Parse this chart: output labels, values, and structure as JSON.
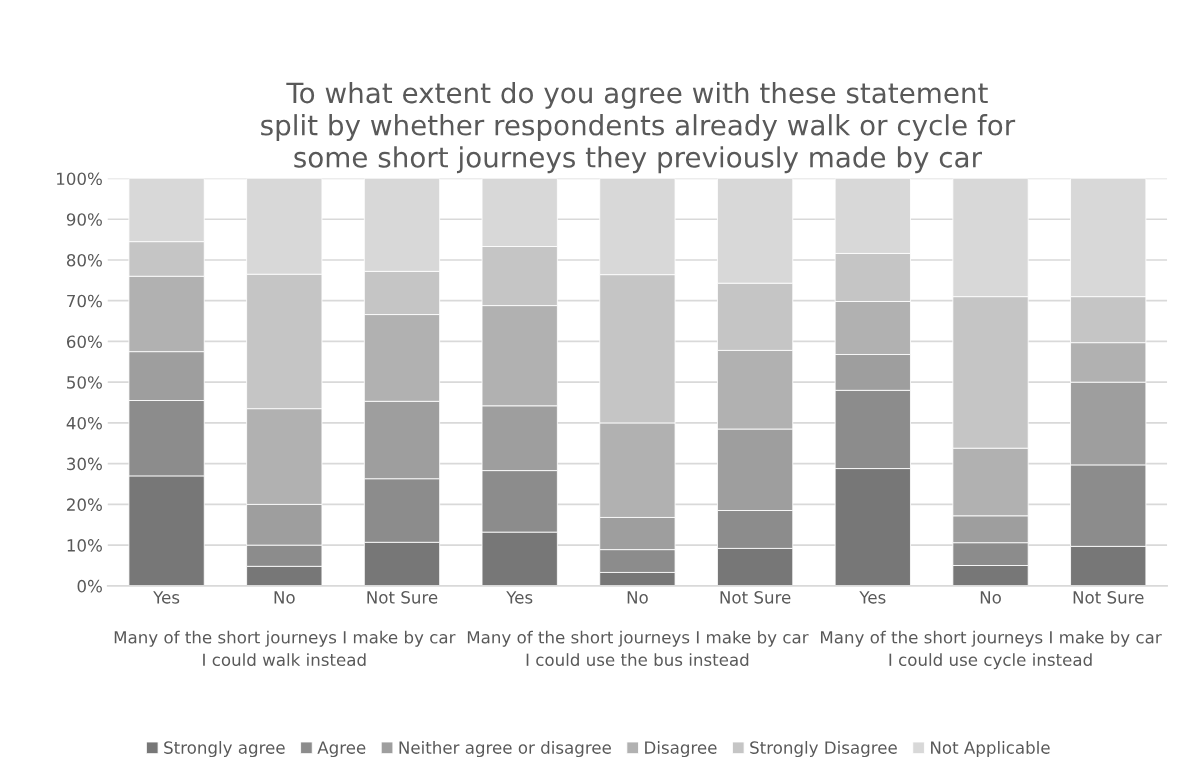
{
  "chart_data": {
    "type": "bar",
    "stacked": true,
    "title": "To what extent do you agree with these statement split by whether respondents already walk or cycle for some short journeys they previously made by car",
    "categories": [
      "Yes",
      "No",
      "Not Sure",
      "Yes",
      "No",
      "Not Sure",
      "Yes",
      "No",
      "Not Sure"
    ],
    "series": [
      {
        "name": "Strongly agree",
        "color": "#777777",
        "values": [
          27,
          4.8,
          10.7,
          13.2,
          3.3,
          9.2,
          28.8,
          5,
          9.7
        ]
      },
      {
        "name": "Agree",
        "color": "#8c8c8c",
        "values": [
          18.5,
          5.2,
          15.6,
          15.1,
          5.6,
          9.3,
          19.2,
          5.6,
          20
        ]
      },
      {
        "name": "Neither agree or disagree",
        "color": "#9e9e9e",
        "values": [
          12,
          10,
          19,
          15.9,
          7.9,
          20,
          8.8,
          6.6,
          20.3
        ]
      },
      {
        "name": "Disagree",
        "color": "#b1b1b1",
        "values": [
          18.5,
          23.5,
          21.3,
          24.6,
          23.2,
          19.3,
          13,
          16.6,
          9.7
        ]
      },
      {
        "name": "Strongly Disagree",
        "color": "#c5c5c5",
        "values": [
          8.5,
          33,
          10.6,
          14.5,
          36.4,
          16.5,
          11.8,
          37.2,
          11.3
        ]
      },
      {
        "name": "Not Applicable",
        "color": "#d8d8d8",
        "values": [
          15.5,
          23.5,
          22.8,
          16.7,
          23.6,
          25.7,
          18.4,
          29,
          29
        ]
      }
    ],
    "annotations": [
      "Many of the short journeys I make by car I could walk instead",
      "Many of the short journeys I make by car I could use the bus instead",
      "Many of the short journeys I make by car I could use cycle instead"
    ],
    "ylim": [
      0,
      100
    ],
    "yticks": [
      {
        "value": 0,
        "label": "0%"
      },
      {
        "value": 10,
        "label": "10%"
      },
      {
        "value": 20,
        "label": "20%"
      },
      {
        "value": 30,
        "label": "30%"
      },
      {
        "value": 40,
        "label": "40%"
      },
      {
        "value": 50,
        "label": "50%"
      },
      {
        "value": 60,
        "label": "60%"
      },
      {
        "value": 70,
        "label": "70%"
      },
      {
        "value": 80,
        "label": "80%"
      },
      {
        "value": 90,
        "label": "90%"
      },
      {
        "value": 100,
        "label": "100%"
      }
    ],
    "grid": "y",
    "legend": "bottom"
  }
}
